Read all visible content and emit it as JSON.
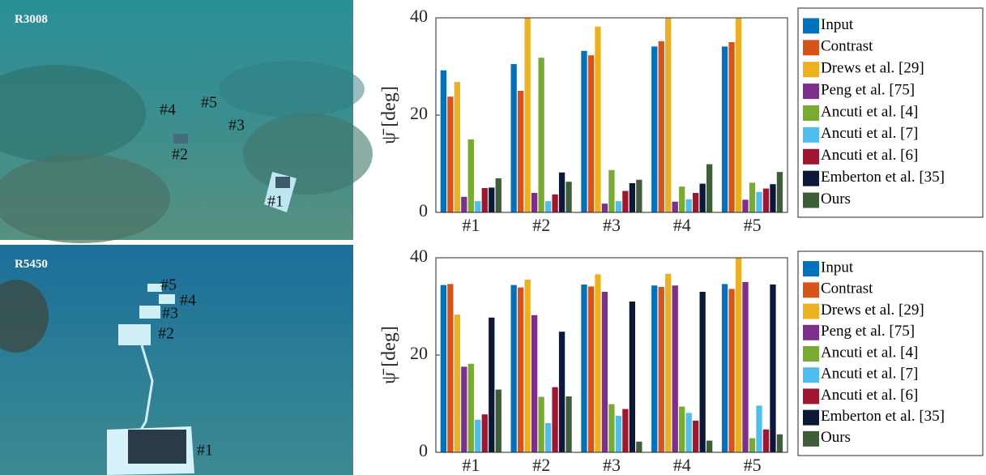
{
  "images": [
    {
      "label": "R3008",
      "markers": [
        "#1",
        "#2",
        "#3",
        "#4",
        "#5"
      ]
    },
    {
      "label": "R5450",
      "markers": [
        "#1",
        "#2",
        "#3",
        "#4",
        "#5"
      ]
    }
  ],
  "chart_data": [
    {
      "type": "bar",
      "y_label": "ψ̄ [deg]",
      "categories": [
        "#1",
        "#2",
        "#3",
        "#4",
        "#5"
      ],
      "ylim": [
        0,
        40
      ],
      "yticks": [
        0,
        20,
        40
      ],
      "series": [
        {
          "name": "Input",
          "color": "#0072bd",
          "values": [
            29.2,
            30.5,
            33.2,
            34.1,
            34.1
          ]
        },
        {
          "name": "Contrast",
          "color": "#d95319",
          "values": [
            23.8,
            25,
            32.3,
            35.2,
            35
          ]
        },
        {
          "name": "Drews et al. [29]",
          "color": "#edb120",
          "values": [
            26.8,
            40,
            38.2,
            40,
            40
          ]
        },
        {
          "name": "Peng et al.  [75]",
          "color": "#7e2f8e",
          "values": [
            3.2,
            4,
            1.8,
            2.2,
            2.6
          ]
        },
        {
          "name": "Ancuti et al. [4]",
          "color": "#77ac30",
          "values": [
            15,
            31.8,
            8.7,
            5.3,
            6.1
          ]
        },
        {
          "name": "Ancuti et al. [7]",
          "color": "#4dbeee",
          "values": [
            2.3,
            2.3,
            2.3,
            2.7,
            4.2
          ]
        },
        {
          "name": "Ancuti et al. [6]",
          "color": "#a2142f",
          "values": [
            5,
            3.7,
            4.4,
            4,
            4.9
          ]
        },
        {
          "name": "Emberton et al. [35]",
          "color": "#0b1838",
          "values": [
            5.1,
            8.2,
            6,
            5.9,
            5.8
          ]
        },
        {
          "name": "Ours",
          "color": "#3d5e38",
          "values": [
            7,
            6.3,
            6.7,
            9.9,
            8.3
          ]
        }
      ]
    },
    {
      "type": "bar",
      "y_label": "ψ̄ [deg]",
      "categories": [
        "#1",
        "#2",
        "#3",
        "#4",
        "#5"
      ],
      "ylim": [
        0,
        40
      ],
      "yticks": [
        0,
        20,
        40
      ],
      "series": [
        {
          "name": "Input",
          "color": "#0072bd",
          "values": [
            34.4,
            34.4,
            34.5,
            34.3,
            34.6
          ]
        },
        {
          "name": "Contrast",
          "color": "#d95319",
          "values": [
            34.6,
            33.9,
            34.1,
            34,
            33.6
          ]
        },
        {
          "name": "Drews et al. [29]",
          "color": "#edb120",
          "values": [
            28.3,
            35.5,
            36.6,
            36.7,
            40
          ]
        },
        {
          "name": "Peng et al.  [75]",
          "color": "#7e2f8e",
          "values": [
            17.6,
            28.2,
            33,
            34.3,
            35
          ]
        },
        {
          "name": "Ancuti et al. [4]",
          "color": "#77ac30",
          "values": [
            18.2,
            11.4,
            9.9,
            9.4,
            2.9
          ]
        },
        {
          "name": "Ancuti et al. [7]",
          "color": "#4dbeee",
          "values": [
            6.7,
            6,
            7.5,
            8.1,
            9.6
          ]
        },
        {
          "name": "Ancuti et al. [6]",
          "color": "#a2142f",
          "values": [
            7.8,
            13.4,
            8.9,
            6.5,
            4.7
          ]
        },
        {
          "name": "Emberton et al. [35]",
          "color": "#0b1838",
          "values": [
            27.7,
            24.8,
            31,
            33,
            34.5
          ]
        },
        {
          "name": "Ours",
          "color": "#3d5e38",
          "values": [
            12.9,
            11.5,
            2.2,
            2.4,
            3.7
          ]
        }
      ]
    }
  ]
}
